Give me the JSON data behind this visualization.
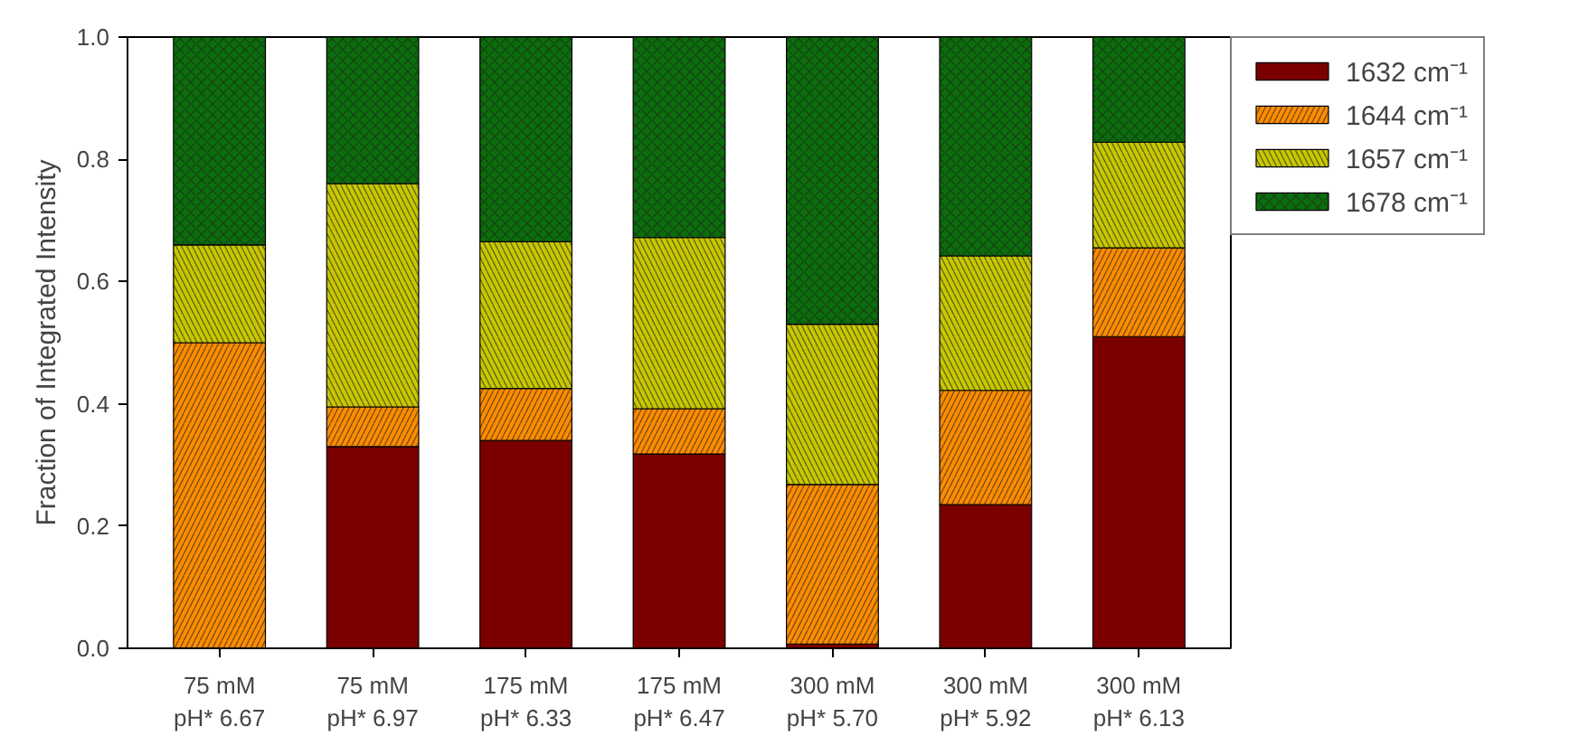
{
  "chart_data": {
    "type": "bar",
    "stacked": true,
    "ylabel": "Fraction of Integrated Intensity",
    "categories": [
      "75 mM\npH* 6.67",
      "75 mM\npH* 6.97",
      "175 mM\npH* 6.33",
      "175 mM\npH* 6.47",
      "300 mM\npH* 5.70",
      "300 mM\npH* 5.92",
      "300 mM\npH* 6.13"
    ],
    "series": [
      {
        "name": "1632 cm⁻¹",
        "color": "#7a0000",
        "values": [
          0.0,
          0.33,
          0.34,
          0.318,
          0.007,
          0.235,
          0.51
        ]
      },
      {
        "name": "1644 cm⁻¹",
        "color": "#ff8c00",
        "values": [
          0.5,
          0.065,
          0.085,
          0.074,
          0.261,
          0.187,
          0.145
        ]
      },
      {
        "name": "1657 cm⁻¹",
        "color": "#c8c800",
        "values": [
          0.16,
          0.365,
          0.24,
          0.28,
          0.262,
          0.22,
          0.173
        ]
      },
      {
        "name": "1678 cm⁻¹",
        "color": "#0a6e0a",
        "values": [
          0.34,
          0.24,
          0.335,
          0.328,
          0.47,
          0.358,
          0.172
        ]
      }
    ],
    "ylim": [
      0,
      1
    ],
    "yticks": [
      {
        "value": 0,
        "label": "0.0"
      },
      {
        "value": 0.2,
        "label": "0.2"
      },
      {
        "value": 0.4,
        "label": "0.4"
      },
      {
        "value": 0.6,
        "label": "0.6"
      },
      {
        "value": 0.8,
        "label": "0.8"
      },
      {
        "value": 1,
        "label": "1.0"
      }
    ],
    "grid": false,
    "legend": "top right"
  }
}
